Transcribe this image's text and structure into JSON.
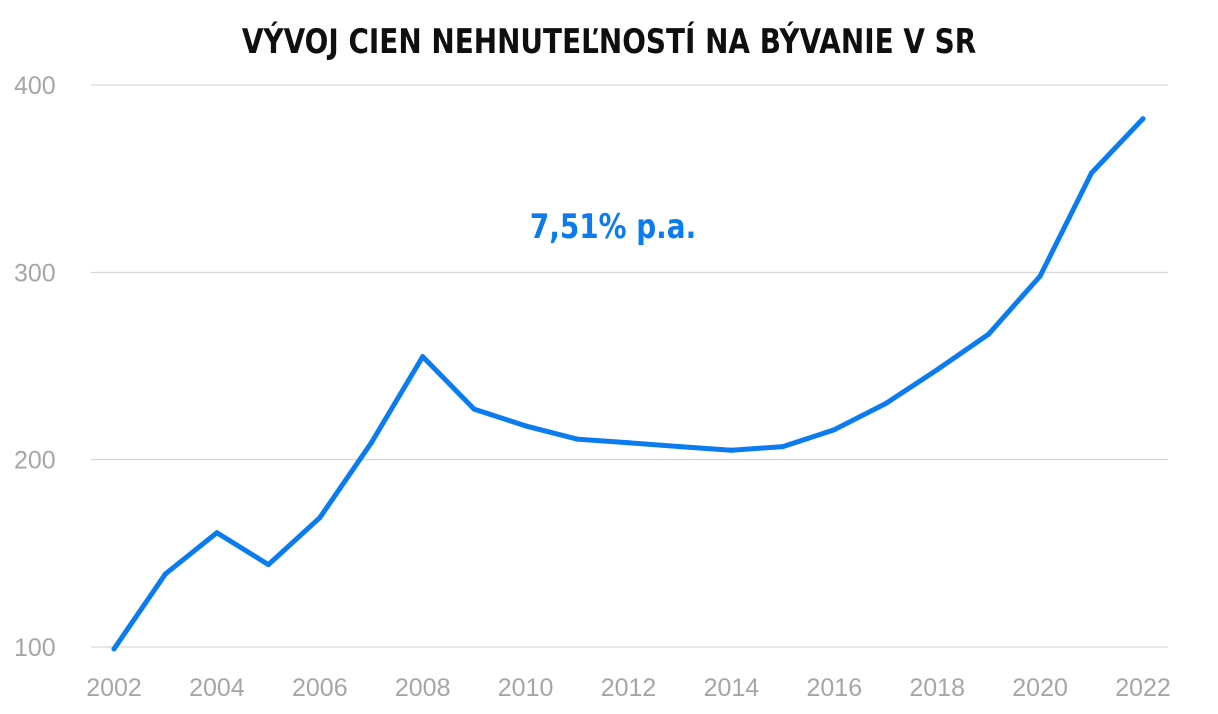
{
  "chart_data": {
    "type": "line",
    "title": "VÝVOJ CIEN NEHNUTEĽNOSTÍ NA BÝVANIE V SR",
    "xlabel": "",
    "ylabel": "",
    "x": [
      2002,
      2003,
      2004,
      2005,
      2006,
      2007,
      2008,
      2009,
      2010,
      2011,
      2012,
      2013,
      2014,
      2015,
      2016,
      2017,
      2018,
      2019,
      2020,
      2021,
      2022
    ],
    "x_tick_labels": [
      "2002",
      "2004",
      "2006",
      "2008",
      "2010",
      "2012",
      "2014",
      "2016",
      "2018",
      "2020",
      "2022"
    ],
    "y_tick_labels": [
      "100",
      "200",
      "300",
      "400"
    ],
    "ylim": [
      100,
      400
    ],
    "xlim": [
      2002,
      2022
    ],
    "grid": true,
    "series": [
      {
        "values": [
          99,
          139,
          161,
          144,
          169,
          209,
          255,
          227,
          218,
          211,
          209,
          207,
          205,
          207,
          216,
          230,
          248,
          267,
          298,
          353,
          382
        ]
      }
    ],
    "annotation": "7,51% p.a.",
    "colors": {
      "line": "#0a7cf0",
      "annotation": "#0a7cf0",
      "grid": "#cfcfcf",
      "ticks": "#a6a6a6",
      "title": "#0f0f0f"
    }
  }
}
